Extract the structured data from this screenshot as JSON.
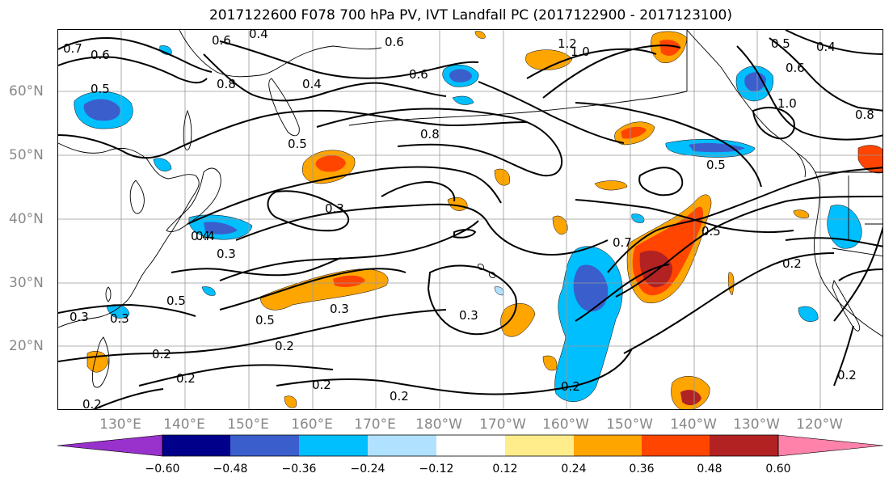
{
  "title": "2017122600 F078 700 hPa PV, IVT Landfall PC (2017122900 - 2017123100)",
  "lat_labels": [
    "60°N",
    "50°N",
    "40°N",
    "30°N",
    "20°N"
  ],
  "lon_labels": [
    "130°E",
    "140°E",
    "150°E",
    "160°E",
    "170°E",
    "180°W",
    "170°W",
    "160°W",
    "150°W",
    "140°W",
    "130°W",
    "120°W"
  ],
  "colorbar": {
    "tick_labels": [
      "−0.60",
      "−0.48",
      "−0.36",
      "−0.24",
      "−0.12",
      "0.12",
      "0.24",
      "0.36",
      "0.48",
      "0.60"
    ],
    "colors": [
      "#9932cc",
      "#00008b",
      "#3a5fcd",
      "#00bfff",
      "#b0e2ff",
      "#ffffff",
      "#ffec8b",
      "#ffa500",
      "#ff4500",
      "#b22222",
      "#ff82ab"
    ]
  },
  "contour_labels": [
    "0.7",
    "0.6",
    "0.5",
    "0.4",
    "0.8",
    "0.6",
    "0.6",
    "1.2",
    "1.0",
    "0.5",
    "0.6",
    "0.4",
    "1.0",
    "0.8",
    "0.5",
    "0.4",
    "0.6",
    "0.8",
    "0.5",
    "0.3",
    "0.5",
    "0.4",
    "0.3",
    "0.5",
    "0.3",
    "0.7",
    "0.5",
    "0.2",
    "0.3",
    "0.4",
    "0.3",
    "0.3",
    "0.2",
    "0.2",
    "0.2",
    "0.2",
    "0.2",
    "0.2",
    "0.2",
    "0.2"
  ]
}
